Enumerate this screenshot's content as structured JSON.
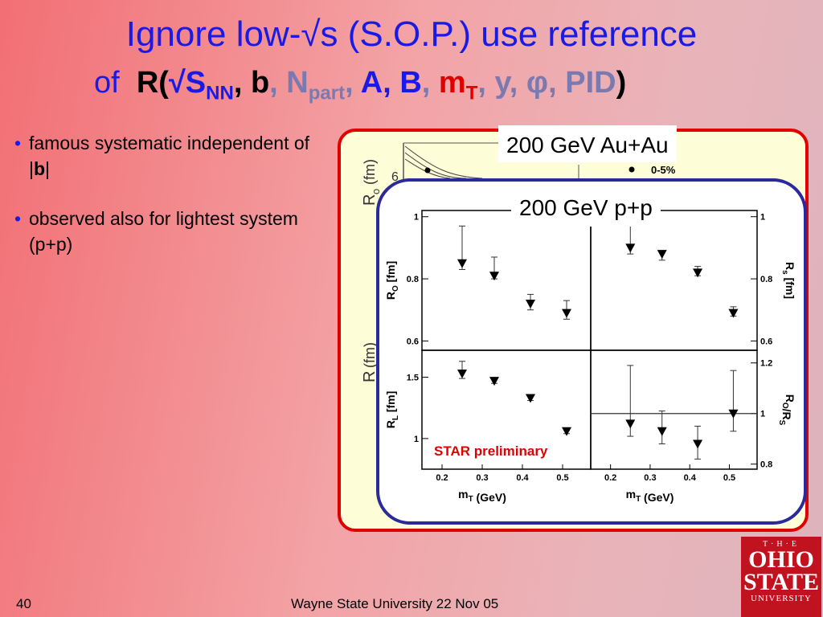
{
  "slide": {
    "title_line1": "Ignore low-√s (S.O.P.) use reference",
    "title_line2": {
      "of": "of",
      "r_open": "R(",
      "sqrt_s": "√S",
      "nn": "NN",
      "comma1": ", ",
      "b": "b",
      "comma2": ", N",
      "part": "part",
      "comma3": ", ",
      "ab": "A, B",
      "comma4": ", ",
      "m": "m",
      "t": "T",
      "rest": ", y, φ, PID",
      "close": ")"
    },
    "bullets": [
      {
        "text_before": "famous systematic independent of |",
        "bold": "b",
        "text_after": "|"
      },
      {
        "text": "observed also for lightest system (p+p)"
      }
    ],
    "slide_number": "40",
    "footer": "Wayne State University 22 Nov 05",
    "logo": {
      "the": "T·H·E",
      "ohio": "OHIO",
      "state": "STATE",
      "university": "UNIVERSITY"
    }
  },
  "figure": {
    "auau_label": "200 GeV Au+Au",
    "pp_label": "200 GeV p+p",
    "star_label": "STAR preliminary",
    "auau_bg": {
      "ro_label": "R",
      "ro_sub": "o",
      "ro_unit": "(fm)",
      "tick_6": "6",
      "legend": "0-5%",
      "rs_label": "R",
      "rs_unit": "(fm)"
    }
  },
  "chart_data": [
    {
      "type": "scatter",
      "panel": "top-left",
      "title": "",
      "xlabel": "",
      "ylabel": "R_O [fm]",
      "xlim": [
        0.15,
        0.57
      ],
      "ylim": [
        0.57,
        1.02
      ],
      "y_ticks": [
        0.6,
        0.8,
        1
      ],
      "x": [
        0.25,
        0.33,
        0.42,
        0.51
      ],
      "y": [
        0.85,
        0.81,
        0.72,
        0.69
      ],
      "err_low": [
        0.02,
        0.01,
        0.02,
        0.02
      ],
      "err_high": [
        0.12,
        0.06,
        0.03,
        0.04
      ]
    },
    {
      "type": "scatter",
      "panel": "top-right",
      "title": "",
      "xlabel": "",
      "ylabel": "R_s [fm]",
      "xlim": [
        0.15,
        0.57
      ],
      "ylim": [
        0.57,
        1.02
      ],
      "y_ticks": [
        0.6,
        0.8,
        1
      ],
      "x": [
        0.25,
        0.33,
        0.42,
        0.51
      ],
      "y": [
        0.9,
        0.88,
        0.82,
        0.69
      ],
      "err_low": [
        0.02,
        0.02,
        0.01,
        0.01
      ],
      "err_high": [
        0.09,
        0.01,
        0.02,
        0.02
      ]
    },
    {
      "type": "scatter",
      "panel": "bottom-left",
      "title": "",
      "xlabel": "m_T (GeV)",
      "ylabel": "R_L [fm]",
      "xlim": [
        0.15,
        0.57
      ],
      "ylim": [
        0.75,
        1.72
      ],
      "x_ticks": [
        0.2,
        0.3,
        0.4,
        0.5
      ],
      "y_ticks": [
        1,
        1.5
      ],
      "x": [
        0.25,
        0.33,
        0.42,
        0.51
      ],
      "y": [
        1.53,
        1.47,
        1.33,
        1.06
      ],
      "err_low": [
        0.04,
        0.02,
        0.02,
        0.02
      ],
      "err_high": [
        0.1,
        0.02,
        0.02,
        0.01
      ]
    },
    {
      "type": "scatter",
      "panel": "bottom-right",
      "title": "",
      "xlabel": "m_T (GeV)",
      "ylabel": "R_O/R_S",
      "xlim": [
        0.15,
        0.57
      ],
      "ylim": [
        0.78,
        1.25
      ],
      "x_ticks": [
        0.2,
        0.3,
        0.4,
        0.5
      ],
      "y_ticks": [
        0.8,
        1,
        1.2
      ],
      "reference_line": 1,
      "x": [
        0.25,
        0.33,
        0.42,
        0.51
      ],
      "y": [
        0.96,
        0.93,
        0.88,
        1
      ],
      "err_low": [
        0.05,
        0.05,
        0.06,
        0.07
      ],
      "err_high": [
        0.23,
        0.08,
        0.07,
        0.17
      ]
    }
  ]
}
